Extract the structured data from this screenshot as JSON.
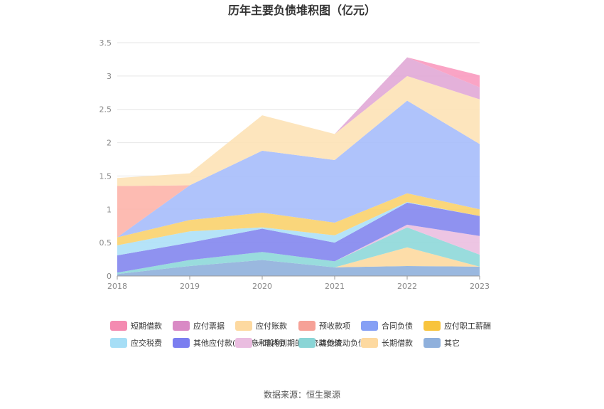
{
  "chart_data": {
    "type": "area",
    "stacked": true,
    "title": "历年主要负债堆积图（亿元）",
    "x": [
      "2018",
      "2019",
      "2020",
      "2021",
      "2022",
      "2023"
    ],
    "ylim": [
      0,
      3.5
    ],
    "yticks": [
      "0",
      "0.5",
      "1",
      "1.5",
      "2",
      "2.5",
      "3",
      "3.5"
    ],
    "grid": true,
    "legend_position": "bottom",
    "series": [
      {
        "name": "其它",
        "color": "#8fb0dc",
        "values": [
          0.03,
          0.15,
          0.24,
          0.13,
          0.15,
          0.14
        ]
      },
      {
        "name": "长期借款",
        "color": "#fdd9a0",
        "values": [
          0,
          0,
          0,
          0,
          0.28,
          0
        ]
      },
      {
        "name": "其他流动负债",
        "color": "#8ed8d9",
        "values": [
          0.02,
          0.09,
          0.12,
          0.09,
          0.3,
          0.18
        ]
      },
      {
        "name": "一年内到期的非流动负债",
        "color": "#ebbfe0",
        "values": [
          0,
          0,
          0,
          0,
          0.04,
          0.28
        ]
      },
      {
        "name": "其他应付款(含利息和股利)",
        "color": "#8386ee",
        "values": [
          0.26,
          0.26,
          0.35,
          0.28,
          0.33,
          0.3
        ]
      },
      {
        "name": "应交税费",
        "color": "#ade0f7",
        "values": [
          0.15,
          0.17,
          0.02,
          0.11,
          0.01,
          0
        ]
      },
      {
        "name": "应付职工薪酬",
        "color": "#fad16d",
        "values": [
          0.12,
          0.17,
          0.22,
          0.19,
          0.13,
          0.1
        ]
      },
      {
        "name": "合同负债",
        "color": "#a6bcfb",
        "values": [
          0,
          0.52,
          0.93,
          0.94,
          1.39,
          0.98
        ]
      },
      {
        "name": "预收款项",
        "color": "#fdb4aa",
        "values": [
          0.77,
          0,
          0,
          0,
          0,
          0
        ]
      },
      {
        "name": "应付账款",
        "color": "#fde2b6",
        "values": [
          0.12,
          0.18,
          0.53,
          0.39,
          0.37,
          0.67
        ]
      },
      {
        "name": "应付票据",
        "color": "#e1a8d6",
        "values": [
          0,
          0,
          0,
          0,
          0.28,
          0.18
        ]
      },
      {
        "name": "短期借款",
        "color": "#f99abf",
        "values": [
          0,
          0,
          0,
          0,
          0,
          0.18
        ]
      }
    ]
  },
  "legend": [
    {
      "name": "短期借款",
      "color": "#f48bb1"
    },
    {
      "name": "应付票据",
      "color": "#d98ac5"
    },
    {
      "name": "应付账款",
      "color": "#fdd9a0"
    },
    {
      "name": "预收款项",
      "color": "#f6a197"
    },
    {
      "name": "合同负债",
      "color": "#86a0f5"
    },
    {
      "name": "应付职工薪酬",
      "color": "#f8c43d"
    },
    {
      "name": "应交税费",
      "color": "#a6def6"
    },
    {
      "name": "其他应付款(含利息和股利)",
      "color": "#7b7ef0"
    },
    {
      "name": "一年内到期的非流动负债",
      "color": "#eabde0"
    },
    {
      "name": "其他流动负债",
      "color": "#8ad5d6"
    },
    {
      "name": "长期借款",
      "color": "#fdd9a0"
    },
    {
      "name": "其它",
      "color": "#8fb0dc"
    }
  ],
  "source": "数据来源：恒生聚源"
}
